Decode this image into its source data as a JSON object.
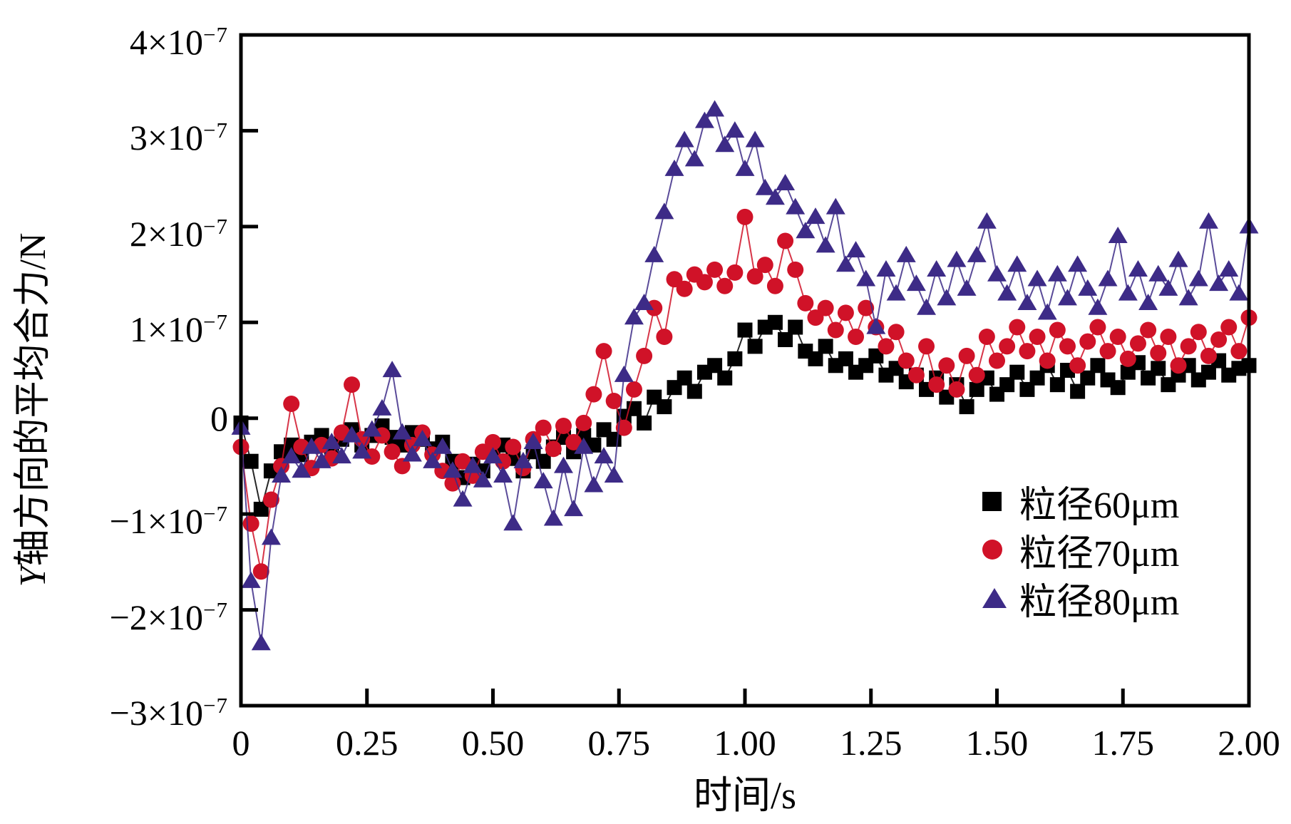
{
  "figure": {
    "background": "#ffffff",
    "axis_color": "#000000"
  },
  "chart_data": {
    "type": "line",
    "subtype": "scatter-line",
    "title": "",
    "xlabel": "时间/s",
    "ylabel": "Y轴方向的平均合力/N",
    "ylabel_parts": {
      "italic": "Y",
      "rest": "轴方向的平均合力/N"
    },
    "xlim": [
      0,
      2.0
    ],
    "ylim_in_units_of_1e-7_N": [
      -3,
      4
    ],
    "y_value_scale": "1e-7 N",
    "grid": false,
    "x_ticks": [
      {
        "v": 0,
        "label": "0"
      },
      {
        "v": 0.25,
        "label": "0.25"
      },
      {
        "v": 0.5,
        "label": "0.50"
      },
      {
        "v": 0.75,
        "label": "0.75"
      },
      {
        "v": 1.0,
        "label": "1.00"
      },
      {
        "v": 1.25,
        "label": "1.25"
      },
      {
        "v": 1.5,
        "label": "1.50"
      },
      {
        "v": 1.75,
        "label": "1.75"
      },
      {
        "v": 2.0,
        "label": "2.00"
      }
    ],
    "y_ticks": [
      {
        "v": 4,
        "base": "4×10",
        "exp": "−7"
      },
      {
        "v": 3,
        "base": "3×10",
        "exp": "−7"
      },
      {
        "v": 2,
        "base": "2×10",
        "exp": "−7"
      },
      {
        "v": 1,
        "base": "1×10",
        "exp": "−7"
      },
      {
        "v": 0,
        "base": "0",
        "exp": ""
      },
      {
        "v": -1,
        "base": "−1×10",
        "exp": "−7"
      },
      {
        "v": -2,
        "base": "−2×10",
        "exp": "−7"
      },
      {
        "v": -3,
        "base": "−3×10",
        "exp": "−7"
      }
    ],
    "legend": {
      "position": "inside-lower-right",
      "entries": [
        {
          "label": "粒径60μm",
          "marker": "square",
          "color": "#000000"
        },
        {
          "label": "粒径70μm",
          "marker": "circle",
          "color": "#d01228"
        },
        {
          "label": "粒径80μm",
          "marker": "triangle-up",
          "color": "#3d2b87"
        }
      ]
    },
    "x_start": 0,
    "x_step": 0.02,
    "series": [
      {
        "name": "粒径60μm",
        "marker": "square",
        "color": "#000000",
        "values": [
          -0.05,
          -0.45,
          -0.95,
          -0.55,
          -0.35,
          -0.28,
          -0.38,
          -0.25,
          -0.18,
          -0.3,
          -0.22,
          -0.12,
          -0.28,
          -0.18,
          -0.08,
          -0.2,
          -0.28,
          -0.15,
          -0.22,
          -0.32,
          -0.25,
          -0.45,
          -0.62,
          -0.48,
          -0.55,
          -0.38,
          -0.28,
          -0.42,
          -0.55,
          -0.35,
          -0.45,
          -0.3,
          -0.2,
          -0.35,
          -0.18,
          -0.28,
          -0.12,
          -0.22,
          0.02,
          0.1,
          -0.05,
          0.22,
          0.12,
          0.32,
          0.42,
          0.28,
          0.48,
          0.55,
          0.42,
          0.62,
          0.92,
          0.75,
          0.95,
          1.0,
          0.82,
          0.95,
          0.7,
          0.62,
          0.75,
          0.55,
          0.62,
          0.48,
          0.55,
          0.65,
          0.45,
          0.52,
          0.38,
          0.45,
          0.3,
          0.42,
          0.22,
          0.35,
          0.12,
          0.3,
          0.42,
          0.25,
          0.35,
          0.48,
          0.3,
          0.42,
          0.55,
          0.35,
          0.5,
          0.28,
          0.42,
          0.55,
          0.4,
          0.32,
          0.48,
          0.58,
          0.42,
          0.52,
          0.35,
          0.45,
          0.55,
          0.4,
          0.48,
          0.6,
          0.45,
          0.52,
          0.55
        ]
      },
      {
        "name": "粒径70μm",
        "marker": "circle",
        "color": "#d01228",
        "values": [
          -0.3,
          -1.1,
          -1.6,
          -0.85,
          -0.5,
          0.15,
          -0.3,
          -0.52,
          -0.28,
          -0.42,
          -0.15,
          0.35,
          -0.22,
          -0.4,
          -0.18,
          -0.35,
          -0.5,
          -0.28,
          -0.15,
          -0.38,
          -0.55,
          -0.68,
          -0.45,
          -0.6,
          -0.35,
          -0.25,
          -0.45,
          -0.3,
          -0.52,
          -0.22,
          -0.1,
          -0.32,
          -0.08,
          -0.25,
          -0.05,
          0.25,
          0.7,
          0.18,
          -0.1,
          0.3,
          0.65,
          1.15,
          0.85,
          1.45,
          1.35,
          1.5,
          1.42,
          1.55,
          1.38,
          1.52,
          2.1,
          1.48,
          1.6,
          1.38,
          1.85,
          1.55,
          1.2,
          1.05,
          1.15,
          0.92,
          1.1,
          0.85,
          1.15,
          0.95,
          0.75,
          0.9,
          0.6,
          0.45,
          0.75,
          0.35,
          0.55,
          0.3,
          0.65,
          0.45,
          0.85,
          0.6,
          0.75,
          0.95,
          0.7,
          0.85,
          0.6,
          0.92,
          0.75,
          0.55,
          0.8,
          0.95,
          0.7,
          0.85,
          0.62,
          0.78,
          0.92,
          0.68,
          0.85,
          0.55,
          0.75,
          0.9,
          0.65,
          0.82,
          0.95,
          0.7,
          1.05
        ]
      },
      {
        "name": "粒径80μm",
        "marker": "triangle-up",
        "color": "#3d2b87",
        "values": [
          -0.1,
          -1.7,
          -2.35,
          -1.25,
          -0.6,
          -0.4,
          -0.55,
          -0.3,
          -0.45,
          -0.25,
          -0.4,
          -0.18,
          -0.35,
          -0.12,
          0.1,
          0.5,
          -0.15,
          -0.38,
          -0.22,
          -0.45,
          -0.3,
          -0.55,
          -0.85,
          -0.5,
          -0.65,
          -0.4,
          -0.6,
          -1.1,
          -0.45,
          -0.25,
          -0.66,
          -1.05,
          -0.5,
          -0.95,
          -0.3,
          -0.7,
          -0.4,
          -0.6,
          0.45,
          1.05,
          1.2,
          1.7,
          2.15,
          2.6,
          2.9,
          2.7,
          3.1,
          3.22,
          2.85,
          3.0,
          2.6,
          2.9,
          2.4,
          2.3,
          2.45,
          2.2,
          1.95,
          2.1,
          1.8,
          2.2,
          1.6,
          1.75,
          1.45,
          0.95,
          1.55,
          1.3,
          1.7,
          1.4,
          1.15,
          1.55,
          1.25,
          1.65,
          1.35,
          1.7,
          2.05,
          1.5,
          1.3,
          1.6,
          1.2,
          1.45,
          1.1,
          1.5,
          1.25,
          1.6,
          1.35,
          1.15,
          1.45,
          1.9,
          1.3,
          1.55,
          1.2,
          1.5,
          1.35,
          1.65,
          1.25,
          1.45,
          2.05,
          1.4,
          1.55,
          1.3,
          2.0
        ]
      }
    ]
  }
}
